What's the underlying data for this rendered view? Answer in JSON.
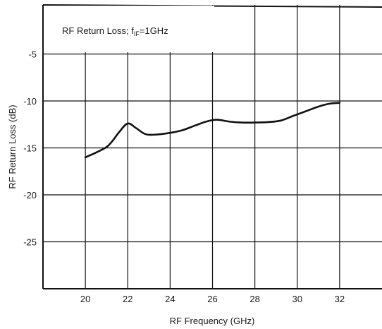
{
  "chart_data": {
    "type": "line",
    "title": "RF Return Loss; fIF=1GHz",
    "annotation": {
      "prefix": "RF Return Loss; f",
      "subscript": "IF",
      "suffix": "=1GHz"
    },
    "xlabel": "RF Frequency (GHz)",
    "ylabel": "RF Return Loss (dB)",
    "xlim": [
      18,
      34
    ],
    "ylim": [
      -30,
      0
    ],
    "x_ticks": [
      20,
      22,
      24,
      26,
      28,
      30,
      32
    ],
    "y_ticks": [
      -5,
      -10,
      -15,
      -20,
      -25
    ],
    "grid": true,
    "legend": "none",
    "series": [
      {
        "color": "#111111",
        "x": [
          20,
          20.5,
          21,
          21.3,
          21.6,
          22,
          22.4,
          22.8,
          23.2,
          24,
          24.6,
          25.2,
          25.7,
          26.2,
          26.8,
          27.4,
          28,
          28.6,
          29.2,
          29.8,
          30.4,
          31,
          31.5,
          32
        ],
        "y": [
          -16,
          -15.5,
          -14.9,
          -14.2,
          -13.3,
          -12.4,
          -12.9,
          -13.5,
          -13.6,
          -13.4,
          -13.1,
          -12.6,
          -12.2,
          -12.0,
          -12.2,
          -12.3,
          -12.3,
          -12.25,
          -12.1,
          -11.6,
          -11.1,
          -10.6,
          -10.3,
          -10.2
        ]
      }
    ]
  }
}
